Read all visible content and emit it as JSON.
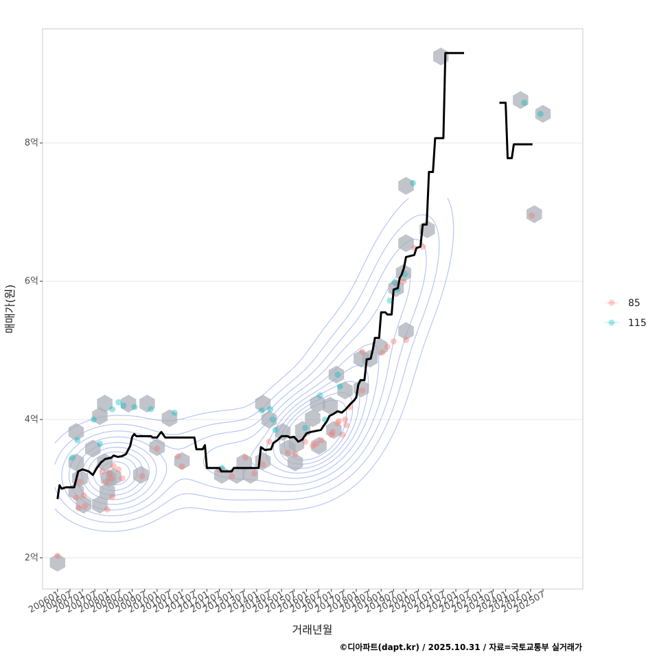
{
  "chart_data": {
    "type": "scatter",
    "xlabel": "거래년월",
    "ylabel": "매매가(원)",
    "caption": "©디아파트(dapt.kr) / 2025.10.31 / 자료=국토교통부 실거래가",
    "x_unit": "year",
    "xlim": [
      2005.4,
      2027.1
    ],
    "ylim": [
      1.55,
      9.65
    ],
    "y_ticks": [
      {
        "value": 2,
        "label": "2억"
      },
      {
        "value": 4,
        "label": "4억"
      },
      {
        "value": 6,
        "label": "6억"
      },
      {
        "value": 8,
        "label": "8억"
      }
    ],
    "x_ticks": [
      {
        "value": 2006.0,
        "label": "200601"
      },
      {
        "value": 2006.5,
        "label": "200607"
      },
      {
        "value": 2007.0,
        "label": "200701"
      },
      {
        "value": 2007.5,
        "label": "200707"
      },
      {
        "value": 2008.0,
        "label": "200801"
      },
      {
        "value": 2008.5,
        "label": "200807"
      },
      {
        "value": 2009.0,
        "label": "200901"
      },
      {
        "value": 2009.5,
        "label": "200907"
      },
      {
        "value": 2010.0,
        "label": "201001"
      },
      {
        "value": 2010.5,
        "label": "201007"
      },
      {
        "value": 2011.0,
        "label": "201101"
      },
      {
        "value": 2011.5,
        "label": "201107"
      },
      {
        "value": 2012.0,
        "label": "201201"
      },
      {
        "value": 2012.5,
        "label": "201207"
      },
      {
        "value": 2013.0,
        "label": "201301"
      },
      {
        "value": 2013.5,
        "label": "201307"
      },
      {
        "value": 2014.0,
        "label": "201401"
      },
      {
        "value": 2014.5,
        "label": "201407"
      },
      {
        "value": 2015.0,
        "label": "201501"
      },
      {
        "value": 2015.5,
        "label": "201507"
      },
      {
        "value": 2016.0,
        "label": "201601"
      },
      {
        "value": 2016.5,
        "label": "201607"
      },
      {
        "value": 2017.0,
        "label": "201701"
      },
      {
        "value": 2017.5,
        "label": "201707"
      },
      {
        "value": 2018.0,
        "label": "201801"
      },
      {
        "value": 2018.5,
        "label": "201807"
      },
      {
        "value": 2019.0,
        "label": "201901"
      },
      {
        "value": 2019.5,
        "label": "201907"
      },
      {
        "value": 2020.0,
        "label": "202001"
      },
      {
        "value": 2020.5,
        "label": "202007"
      },
      {
        "value": 2021.0,
        "label": "202101"
      },
      {
        "value": 2021.5,
        "label": "202107"
      },
      {
        "value": 2022.0,
        "label": "202201"
      },
      {
        "value": 2022.5,
        "label": "202207"
      },
      {
        "value": 2023.0,
        "label": "202301"
      },
      {
        "value": 2023.5,
        "label": "202307"
      },
      {
        "value": 2024.0,
        "label": "202401"
      },
      {
        "value": 2024.5,
        "label": "202407"
      },
      {
        "value": 2025.0,
        "label": "202501"
      },
      {
        "value": 2025.5,
        "label": "202507"
      }
    ],
    "legend": {
      "placement": "right",
      "entries": [
        {
          "label": "85",
          "color": "#F8766D"
        },
        {
          "label": "115",
          "color": "#00BFC4"
        }
      ]
    },
    "colors": {
      "line": "#000000",
      "hex": "#A9ADB5",
      "contour": "#7B96EA",
      "grid": "#e6e6e6",
      "panel_border": "#c8c8c8"
    },
    "trend_line": [
      [
        [
          2006.0,
          2.85
        ],
        [
          2006.08,
          3.05
        ],
        [
          2006.17,
          3.0
        ],
        [
          2006.33,
          3.02
        ],
        [
          2006.67,
          3.02
        ],
        [
          2006.83,
          3.25
        ],
        [
          2007.0,
          3.28
        ],
        [
          2007.25,
          3.25
        ],
        [
          2007.42,
          3.2
        ],
        [
          2007.58,
          3.3
        ],
        [
          2007.75,
          3.38
        ],
        [
          2007.92,
          3.43
        ],
        [
          2008.17,
          3.45
        ],
        [
          2008.25,
          3.48
        ],
        [
          2008.42,
          3.46
        ],
        [
          2008.58,
          3.47
        ],
        [
          2008.75,
          3.5
        ],
        [
          2008.92,
          3.62
        ],
        [
          2009.0,
          3.75
        ],
        [
          2009.08,
          3.79
        ],
        [
          2009.17,
          3.76
        ],
        [
          2009.75,
          3.76
        ],
        [
          2009.83,
          3.74
        ],
        [
          2010.0,
          3.74
        ],
        [
          2010.08,
          3.78
        ],
        [
          2010.17,
          3.82
        ],
        [
          2010.33,
          3.74
        ],
        [
          2011.5,
          3.74
        ],
        [
          2011.58,
          3.57
        ],
        [
          2011.83,
          3.57
        ],
        [
          2011.92,
          3.63
        ],
        [
          2012.0,
          3.3
        ],
        [
          2012.5,
          3.3
        ],
        [
          2012.58,
          3.25
        ],
        [
          2013.0,
          3.25
        ],
        [
          2013.08,
          3.3
        ],
        [
          2014.08,
          3.3
        ],
        [
          2014.17,
          3.6
        ],
        [
          2014.33,
          3.56
        ],
        [
          2014.58,
          3.57
        ],
        [
          2014.67,
          3.66
        ],
        [
          2014.83,
          3.7
        ],
        [
          2015.0,
          3.76
        ],
        [
          2015.25,
          3.76
        ],
        [
          2015.33,
          3.74
        ],
        [
          2015.5,
          3.75
        ],
        [
          2015.58,
          3.72
        ],
        [
          2015.67,
          3.68
        ],
        [
          2015.83,
          3.71
        ],
        [
          2016.0,
          3.8
        ],
        [
          2016.17,
          3.82
        ],
        [
          2016.58,
          3.85
        ],
        [
          2016.67,
          3.9
        ],
        [
          2016.83,
          3.98
        ],
        [
          2016.92,
          4.05
        ],
        [
          2017.08,
          4.08
        ],
        [
          2017.25,
          4.12
        ],
        [
          2017.42,
          4.1
        ],
        [
          2017.58,
          4.15
        ],
        [
          2017.75,
          4.22
        ],
        [
          2017.92,
          4.28
        ],
        [
          2018.0,
          4.32
        ],
        [
          2018.08,
          4.5
        ],
        [
          2018.17,
          4.57
        ],
        [
          2018.33,
          4.57
        ],
        [
          2018.42,
          4.87
        ],
        [
          2018.58,
          4.88
        ],
        [
          2018.67,
          5.02
        ],
        [
          2018.75,
          5.18
        ],
        [
          2018.92,
          5.18
        ],
        [
          2019.0,
          5.55
        ],
        [
          2019.17,
          5.55
        ],
        [
          2019.25,
          5.52
        ],
        [
          2019.42,
          5.52
        ],
        [
          2019.5,
          5.88
        ],
        [
          2019.67,
          5.9
        ],
        [
          2019.75,
          6.05
        ],
        [
          2019.83,
          6.1
        ],
        [
          2019.92,
          6.2
        ],
        [
          2020.0,
          6.35
        ],
        [
          2020.33,
          6.38
        ],
        [
          2020.42,
          6.48
        ],
        [
          2020.58,
          6.5
        ],
        [
          2020.67,
          6.82
        ],
        [
          2020.83,
          6.82
        ],
        [
          2020.92,
          7.58
        ],
        [
          2021.08,
          7.58
        ],
        [
          2021.17,
          8.07
        ],
        [
          2021.5,
          8.07
        ],
        [
          2021.58,
          9.3
        ],
        [
          2022.33,
          9.3
        ]
      ],
      [
        [
          2023.75,
          8.58
        ],
        [
          2024.0,
          8.58
        ],
        [
          2024.08,
          7.78
        ],
        [
          2024.25,
          7.78
        ],
        [
          2024.33,
          7.98
        ],
        [
          2025.08,
          7.98
        ]
      ]
    ],
    "hexbins": [
      [
        2006.0,
        1.93
      ],
      [
        2006.75,
        3.82
      ],
      [
        2006.75,
        3.38
      ],
      [
        2006.75,
        2.96
      ],
      [
        2006.9,
        3.15
      ],
      [
        2007.05,
        2.77
      ],
      [
        2007.42,
        3.58
      ],
      [
        2007.7,
        2.77
      ],
      [
        2007.7,
        4.05
      ],
      [
        2007.9,
        4.23
      ],
      [
        2007.9,
        3.38
      ],
      [
        2008.05,
        3.15
      ],
      [
        2008.0,
        2.96
      ],
      [
        2008.25,
        3.17
      ],
      [
        2008.85,
        4.23
      ],
      [
        2009.35,
        3.2
      ],
      [
        2009.6,
        4.23
      ],
      [
        2010.0,
        3.6
      ],
      [
        2010.5,
        4.02
      ],
      [
        2011.0,
        3.4
      ],
      [
        2012.6,
        3.2
      ],
      [
        2013.2,
        3.2
      ],
      [
        2013.5,
        3.38
      ],
      [
        2013.75,
        3.2
      ],
      [
        2014.25,
        4.23
      ],
      [
        2014.25,
        3.4
      ],
      [
        2014.5,
        4.0
      ],
      [
        2015.05,
        3.82
      ],
      [
        2015.25,
        3.58
      ],
      [
        2015.55,
        3.38
      ],
      [
        2015.6,
        3.65
      ],
      [
        2015.85,
        3.85
      ],
      [
        2016.25,
        4.02
      ],
      [
        2016.5,
        3.62
      ],
      [
        2016.45,
        4.23
      ],
      [
        2016.95,
        4.2
      ],
      [
        2017.1,
        3.85
      ],
      [
        2017.2,
        4.65
      ],
      [
        2017.55,
        4.42
      ],
      [
        2018.2,
        4.45
      ],
      [
        2018.2,
        4.88
      ],
      [
        2018.55,
        4.88
      ],
      [
        2018.95,
        5.05
      ],
      [
        2019.6,
        5.9
      ],
      [
        2019.9,
        6.12
      ],
      [
        2020.0,
        7.38
      ],
      [
        2020.0,
        6.55
      ],
      [
        2020.0,
        5.28
      ],
      [
        2020.85,
        6.75
      ],
      [
        2021.4,
        9.25
      ],
      [
        2024.6,
        8.62
      ],
      [
        2025.5,
        8.42
      ],
      [
        2025.15,
        6.97
      ]
    ],
    "points_85": [
      [
        2006.0,
        2.03
      ],
      [
        2006.75,
        2.87
      ],
      [
        2006.85,
        2.72
      ],
      [
        2006.9,
        3.1
      ],
      [
        2007.05,
        2.9
      ],
      [
        2007.1,
        2.75
      ],
      [
        2007.8,
        3.25
      ],
      [
        2007.95,
        3.1
      ],
      [
        2008.1,
        3.22
      ],
      [
        2008.15,
        3.15
      ],
      [
        2008.25,
        3.33
      ],
      [
        2008.45,
        3.28
      ],
      [
        2008.6,
        3.15
      ],
      [
        2008.2,
        2.88
      ],
      [
        2008.0,
        2.7
      ],
      [
        2009.4,
        3.18
      ],
      [
        2010.0,
        3.58
      ],
      [
        2010.85,
        3.47
      ],
      [
        2011.0,
        3.32
      ],
      [
        2012.5,
        3.27
      ],
      [
        2013.0,
        3.18
      ],
      [
        2013.55,
        3.45
      ],
      [
        2013.9,
        3.22
      ],
      [
        2014.25,
        3.35
      ],
      [
        2014.5,
        3.68
      ],
      [
        2015.25,
        3.52
      ],
      [
        2015.55,
        3.5
      ],
      [
        2015.95,
        3.68
      ],
      [
        2016.25,
        3.62
      ],
      [
        2016.4,
        3.65
      ],
      [
        2016.6,
        3.7
      ],
      [
        2017.0,
        3.78
      ],
      [
        2017.05,
        3.82
      ],
      [
        2017.25,
        3.95
      ],
      [
        2017.3,
        3.98
      ],
      [
        2017.55,
        4.0
      ],
      [
        2017.45,
        3.78
      ],
      [
        2017.6,
        3.92
      ],
      [
        2017.75,
        4.18
      ],
      [
        2018.25,
        4.42
      ],
      [
        2018.25,
        4.98
      ],
      [
        2019.05,
        4.97
      ],
      [
        2019.25,
        5.05
      ],
      [
        2019.5,
        5.13
      ],
      [
        2019.65,
        5.95
      ],
      [
        2019.9,
        6.0
      ],
      [
        2020.0,
        5.15
      ],
      [
        2020.33,
        6.48
      ],
      [
        2020.67,
        6.5
      ],
      [
        2025.05,
        6.95
      ]
    ],
    "points_115": [
      [
        2006.6,
        3.45
      ],
      [
        2006.8,
        3.7
      ],
      [
        2007.45,
        4.0
      ],
      [
        2007.7,
        3.65
      ],
      [
        2008.2,
        4.15
      ],
      [
        2008.45,
        4.25
      ],
      [
        2008.65,
        4.2
      ],
      [
        2009.1,
        4.18
      ],
      [
        2009.75,
        4.15
      ],
      [
        2010.7,
        4.1
      ],
      [
        2012.6,
        3.3
      ],
      [
        2014.2,
        4.13
      ],
      [
        2014.55,
        4.15
      ],
      [
        2014.65,
        4.0
      ],
      [
        2014.75,
        3.85
      ],
      [
        2015.95,
        3.88
      ],
      [
        2016.55,
        4.35
      ],
      [
        2016.75,
        4.0
      ],
      [
        2017.25,
        4.65
      ],
      [
        2017.35,
        4.48
      ],
      [
        2019.35,
        5.72
      ],
      [
        2019.55,
        5.98
      ],
      [
        2019.65,
        5.88
      ],
      [
        2019.95,
        6.1
      ],
      [
        2020.28,
        7.42
      ],
      [
        2024.75,
        8.58
      ],
      [
        2025.4,
        8.42
      ]
    ],
    "contours": {
      "centers": [
        {
          "x": 2008.3,
          "y": 3.22,
          "weight": 1.0,
          "sx": 1.15,
          "sy": 0.33,
          "rho": 0.05
        },
        {
          "x": 2016.1,
          "y": 3.78,
          "weight": 1.15,
          "sx": 1.05,
          "sy": 0.38,
          "rho": 0.25
        },
        {
          "x": 2017.7,
          "y": 4.35,
          "weight": 0.55,
          "sx": 1.1,
          "sy": 0.6,
          "rho": 0.4
        },
        {
          "x": 2019.7,
          "y": 5.85,
          "weight": 0.3,
          "sx": 1.1,
          "sy": 0.75,
          "rho": 0.6
        },
        {
          "x": 2013.0,
          "y": 3.4,
          "weight": 0.35,
          "sx": 1.6,
          "sy": 0.35,
          "rho": 0.0
        }
      ],
      "levels": [
        0.04,
        0.1,
        0.18,
        0.28,
        0.4,
        0.52,
        0.64,
        0.76,
        0.88
      ]
    }
  }
}
